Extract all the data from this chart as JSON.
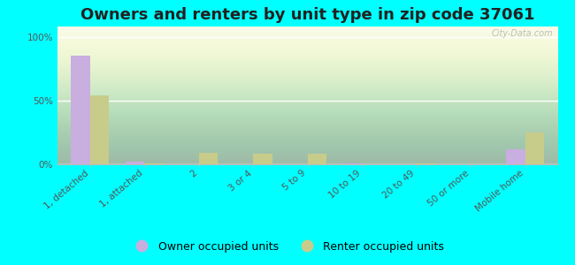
{
  "title": "Owners and renters by unit type in zip code 37061",
  "categories": [
    "1, detached",
    "1, attached",
    "2",
    "3 or 4",
    "5 to 9",
    "10 to 19",
    "20 to 49",
    "50 or more",
    "Mobile home"
  ],
  "owner_values": [
    85,
    2,
    0,
    0,
    0,
    1,
    0,
    0,
    12
  ],
  "renter_values": [
    54,
    1,
    9,
    8,
    8,
    0,
    1,
    0,
    25
  ],
  "owner_color": "#c9aee0",
  "renter_color": "#c8cc8a",
  "background_color": "#00FFFF",
  "ylabel_ticks": [
    "0%",
    "50%",
    "100%"
  ],
  "ytick_values": [
    0,
    50,
    100
  ],
  "ylim": [
    0,
    108
  ],
  "watermark": "City-Data.com",
  "legend_owner": "Owner occupied units",
  "legend_renter": "Renter occupied units",
  "bar_width": 0.35,
  "title_fontsize": 13,
  "tick_fontsize": 7.5,
  "legend_fontsize": 9
}
